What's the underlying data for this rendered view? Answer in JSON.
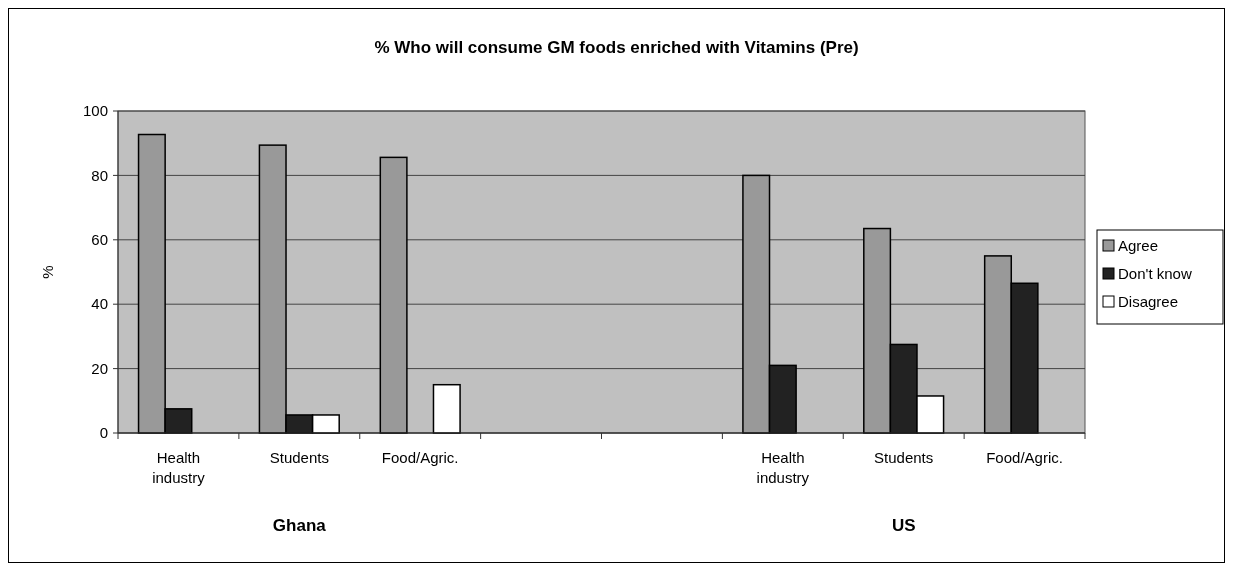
{
  "chart_data": {
    "type": "bar",
    "title": "% Who will consume GM foods enriched with Vitamins (Pre)",
    "ylabel": "%",
    "categories": [
      "Health industry",
      "Students",
      "Food/Agric.",
      null,
      null,
      "Health industry",
      "Students",
      "Food/Agric."
    ],
    "series": [
      {
        "name": "Agree",
        "color": "#999999",
        "values": [
          92.7,
          89.4,
          85.6,
          null,
          null,
          80,
          63.5,
          55
        ]
      },
      {
        "name": "Don't know",
        "color": "#222222",
        "values": [
          7.5,
          5.6,
          null,
          null,
          null,
          21,
          27.5,
          46.5
        ]
      },
      {
        "name": "Disagree",
        "color": "#ffffff",
        "values": [
          null,
          5.6,
          15,
          null,
          null,
          null,
          11.5,
          null
        ]
      }
    ],
    "annotations": [
      "Ghana",
      "US"
    ],
    "ylim": [
      0,
      100
    ],
    "yticks": [
      0,
      20,
      40,
      60,
      80,
      100
    ],
    "grid": "y",
    "legend": "right"
  }
}
